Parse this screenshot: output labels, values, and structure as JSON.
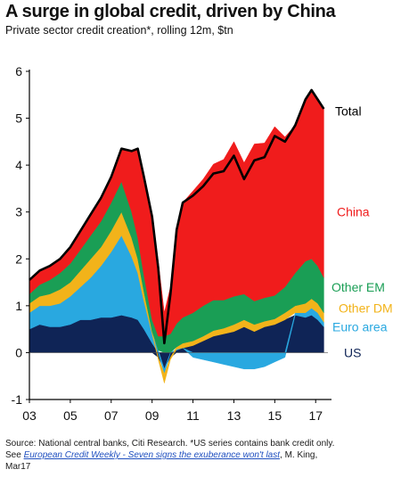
{
  "title": "A surge in global credit, driven by China",
  "subtitle": "Private sector credit creation*, rolling 12m, $tn",
  "source": {
    "line1": "Source: National central banks, Citi Research. *US series contains bank credit only.",
    "see": "See ",
    "link_text": "European Credit Weekly - Seven signs the exuberance won't last",
    "author": ", M. King,",
    "line3": "Mar17"
  },
  "chart_data": {
    "type": "area",
    "stacked": true,
    "title": "A surge in global credit, driven by China",
    "subtitle": "Private sector credit creation*, rolling 12m, $tn",
    "ylim": [
      -1,
      6
    ],
    "yticks": [
      -1,
      0,
      1,
      2,
      3,
      4,
      5,
      6
    ],
    "xlim": [
      2003,
      2017.6
    ],
    "xticks": [
      {
        "x": 2003,
        "label": "03"
      },
      {
        "x": 2005,
        "label": "05"
      },
      {
        "x": 2007,
        "label": "07"
      },
      {
        "x": 2009,
        "label": "09"
      },
      {
        "x": 2011,
        "label": "11"
      },
      {
        "x": 2013,
        "label": "13"
      },
      {
        "x": 2015,
        "label": "15"
      },
      {
        "x": 2017,
        "label": "17"
      }
    ],
    "grid": false,
    "legend_position": "right, labels beside series",
    "x": [
      2003.0,
      2003.5,
      2004.0,
      2004.5,
      2005.0,
      2005.5,
      2006.0,
      2006.5,
      2007.0,
      2007.5,
      2008.0,
      2008.3,
      2008.6,
      2009.0,
      2009.3,
      2009.6,
      2009.9,
      2010.2,
      2010.5,
      2011.0,
      2011.5,
      2012.0,
      2012.5,
      2013.0,
      2013.5,
      2014.0,
      2014.5,
      2015.0,
      2015.5,
      2016.0,
      2016.5,
      2016.8,
      2017.1,
      2017.4
    ],
    "series": [
      {
        "name": "US",
        "color": "#0f2456",
        "values": [
          0.5,
          0.6,
          0.55,
          0.55,
          0.6,
          0.7,
          0.7,
          0.75,
          0.75,
          0.8,
          0.75,
          0.7,
          0.5,
          0.2,
          -0.1,
          -0.35,
          -0.1,
          0.05,
          0.1,
          0.15,
          0.25,
          0.35,
          0.4,
          0.45,
          0.55,
          0.45,
          0.55,
          0.6,
          0.7,
          0.8,
          0.75,
          0.8,
          0.7,
          0.55
        ]
      },
      {
        "name": "Euro area",
        "color": "#29a8e0",
        "values": [
          0.35,
          0.4,
          0.45,
          0.5,
          0.6,
          0.7,
          0.9,
          1.1,
          1.4,
          1.7,
          1.3,
          1.0,
          0.6,
          0.2,
          0.05,
          -0.1,
          0.0,
          0.02,
          0.0,
          -0.1,
          -0.15,
          -0.2,
          -0.25,
          -0.3,
          -0.35,
          -0.35,
          -0.3,
          -0.2,
          -0.1,
          0.05,
          0.1,
          0.15,
          0.15,
          0.1
        ]
      },
      {
        "name": "Other DM",
        "color": "#f2b31a",
        "values": [
          0.2,
          0.2,
          0.25,
          0.3,
          0.3,
          0.35,
          0.4,
          0.4,
          0.45,
          0.5,
          0.4,
          0.3,
          0.2,
          0.05,
          -0.05,
          -0.2,
          -0.05,
          0.05,
          0.1,
          0.1,
          0.1,
          0.12,
          0.12,
          0.15,
          0.15,
          0.15,
          0.12,
          0.12,
          0.15,
          0.15,
          0.2,
          0.2,
          0.2,
          0.2
        ]
      },
      {
        "name": "Other EM",
        "color": "#1a9e55",
        "values": [
          0.2,
          0.25,
          0.3,
          0.35,
          0.4,
          0.45,
          0.5,
          0.55,
          0.6,
          0.65,
          0.55,
          0.45,
          0.35,
          0.25,
          0.3,
          0.35,
          0.4,
          0.5,
          0.55,
          0.6,
          0.65,
          0.65,
          0.6,
          0.6,
          0.55,
          0.5,
          0.5,
          0.5,
          0.55,
          0.7,
          0.9,
          0.85,
          0.8,
          0.75
        ]
      },
      {
        "name": "China",
        "color": "#f01c1c",
        "values": [
          0.3,
          0.3,
          0.3,
          0.3,
          0.35,
          0.4,
          0.45,
          0.5,
          0.55,
          0.7,
          1.3,
          1.9,
          2.1,
          2.2,
          1.6,
          0.5,
          1.0,
          2.0,
          2.45,
          2.6,
          2.7,
          2.9,
          3.0,
          3.3,
          2.8,
          3.35,
          3.3,
          3.6,
          3.2,
          3.15,
          3.45,
          3.6,
          3.55,
          3.6
        ]
      }
    ],
    "total": {
      "name": "Total",
      "color": "#000000",
      "values": [
        1.55,
        1.75,
        1.85,
        2.0,
        2.25,
        2.6,
        2.95,
        3.3,
        3.75,
        4.35,
        4.3,
        4.35,
        3.75,
        2.9,
        1.8,
        0.2,
        1.25,
        2.62,
        3.2,
        3.35,
        3.55,
        3.82,
        3.87,
        4.2,
        3.7,
        4.1,
        4.17,
        4.62,
        4.5,
        4.85,
        5.4,
        5.6,
        5.4,
        5.2
      ]
    }
  }
}
